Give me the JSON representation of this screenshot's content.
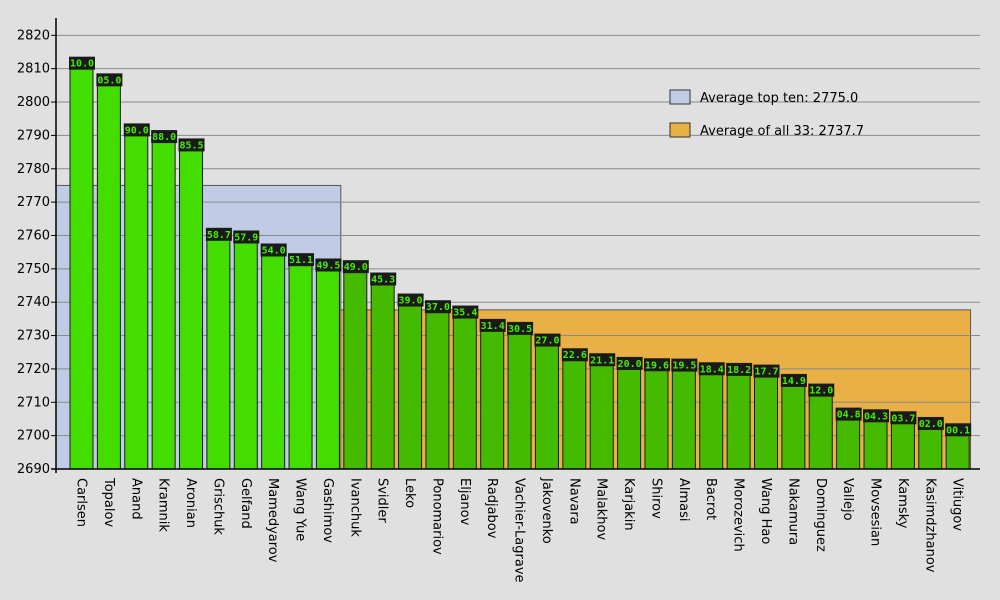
{
  "chart_data": {
    "type": "bar",
    "title": "",
    "xlabel": "",
    "ylabel": "",
    "ylim": [
      2690,
      2825
    ],
    "yticks": [
      2690,
      2700,
      2710,
      2720,
      2730,
      2740,
      2750,
      2760,
      2770,
      2780,
      2790,
      2800,
      2810,
      2820
    ],
    "grid": true,
    "legend_position": "top-right",
    "categories": [
      "Carlsen",
      "Topalov",
      "Anand",
      "Kramnik",
      "Aronian",
      "Grischuk",
      "Gelfand",
      "Mamedyarov",
      "Wang Yue",
      "Gashimov",
      "Ivanchuk",
      "Svidler",
      "Leko",
      "Ponomariov",
      "Eljanov",
      "Radjabov",
      "Vachier-Lagrave",
      "Jakovenko",
      "Navara",
      "Malakhov",
      "Karjakin",
      "Shirov",
      "Almasi",
      "Bacrot",
      "Morozevich",
      "Wang Hao",
      "Nakamura",
      "Dominguez",
      "Vallejo",
      "Movsesian",
      "Kamsky",
      "Kasimdzhanov",
      "Vitiugov"
    ],
    "values": [
      2810.0,
      2805.0,
      2790.0,
      2788.0,
      2785.5,
      2758.7,
      2757.9,
      2754.0,
      2751.1,
      2749.5,
      2749.0,
      2745.3,
      2739.0,
      2737.0,
      2735.4,
      2731.4,
      2730.5,
      2727.0,
      2722.6,
      2721.1,
      2720.0,
      2719.6,
      2719.5,
      2718.4,
      2718.2,
      2717.7,
      2714.9,
      2712.0,
      2704.8,
      2704.3,
      2703.7,
      2702.0,
      2700.1
    ],
    "value_labels": [
      "10.0",
      "05.0",
      "90.0",
      "88.0",
      "85.5",
      "58.7",
      "57.9",
      "54.0",
      "51.1",
      "49.5",
      "49.0",
      "45.3",
      "39.0",
      "37.0",
      "35.4",
      "31.4",
      "30.5",
      "27.0",
      "22.6",
      "21.1",
      "20.0",
      "19.6",
      "19.5",
      "18.4",
      "18.2",
      "17.7",
      "14.9",
      "12.0",
      "04.8",
      "04.3",
      "03.7",
      "02.0",
      "00.1"
    ],
    "reference_areas": [
      {
        "label": "Average top ten: 2775.0",
        "value": 2775.0,
        "count": 10,
        "color": "#c0cce6"
      },
      {
        "label": "Average of all 33: 2737.7",
        "value": 2737.7,
        "count": 33,
        "color": "#e8b045"
      }
    ],
    "colors": {
      "background": "#e0e0e0",
      "bar_top_ten": "#44dd00",
      "bar_rest": "#44bb00",
      "label_box": "#1a1a1a",
      "label_text": "#44ee00"
    }
  }
}
